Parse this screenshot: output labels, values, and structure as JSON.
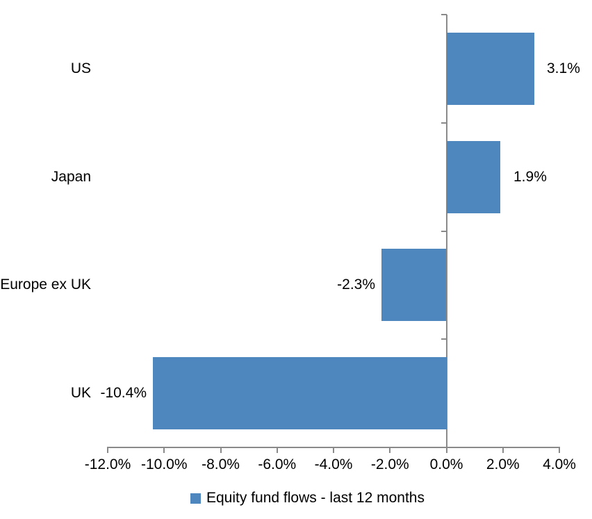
{
  "chart_data": {
    "type": "bar",
    "orientation": "horizontal",
    "title": "",
    "categories": [
      "US",
      "Japan",
      "Europe ex UK",
      "UK"
    ],
    "series": [
      {
        "name": "Equity fund flows - last 12 months",
        "values": [
          3.1,
          1.9,
          -2.3,
          -10.4
        ]
      }
    ],
    "value_labels": [
      "3.1%",
      "1.9%",
      "-2.3%",
      "-10.4%"
    ],
    "xlabel": "",
    "ylabel": "",
    "xlim": [
      -12,
      4
    ],
    "x_tick_step": 2,
    "x_tick_labels": [
      "-12.0%",
      "-10.0%",
      "-8.0%",
      "-6.0%",
      "-4.0%",
      "-2.0%",
      "0.0%",
      "2.0%",
      "4.0%"
    ],
    "grid": false,
    "legend": {
      "position": "bottom",
      "label": "Equity fund flows - last 12 months",
      "marker_color": "#4E86BE"
    },
    "colors": {
      "bar": "#4E86BE",
      "axis": "#8A8A8A",
      "text": "#000000"
    }
  }
}
